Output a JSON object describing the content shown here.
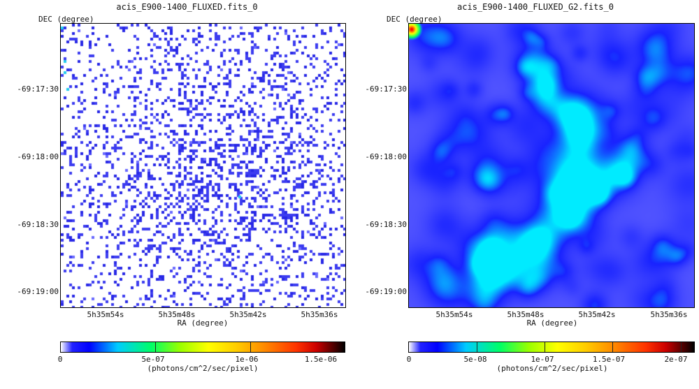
{
  "panels": [
    {
      "title": "acis_E900-1400_FLUXED.fits_0",
      "ylabel": "DEC (degree)",
      "xlabel": "RA (degree)",
      "yticks": [
        "-69:17:30",
        "-69:18:00",
        "-69:18:30",
        "-69:19:00"
      ],
      "xticks": [
        "5h35m54s",
        "5h35m48s",
        "5h35m42s",
        "5h35m36s"
      ],
      "colorbar_ticks": [
        "0",
        "5e-07",
        "1e-06",
        "1.5e-06"
      ],
      "colorbar_label": "(photons/cm^2/sec/pixel)"
    },
    {
      "title": "acis_E900-1400_FLUXED_G2.fits_0",
      "ylabel": "DEC (degree)",
      "xlabel": "RA (degree)",
      "yticks": [
        "-69:17:30",
        "-69:18:00",
        "-69:18:30",
        "-69:19:00"
      ],
      "xticks": [
        "5h35m54s",
        "5h35m48s",
        "5h35m42s",
        "5h35m36s"
      ],
      "colorbar_ticks": [
        "0",
        "5e-08",
        "1e-07",
        "1.5e-07",
        "2e-07"
      ],
      "colorbar_label": "(photons/cm^2/sec/pixel)"
    }
  ],
  "chart_data": [
    {
      "type": "heatmap",
      "title": "acis_E900-1400_FLUXED.fits_0",
      "xlabel": "RA (degree)",
      "ylabel": "DEC (degree)",
      "x_ticks": [
        "5h35m54s",
        "5h35m48s",
        "5h35m42s",
        "5h35m36s"
      ],
      "y_ticks": [
        "-69:17:30",
        "-69:18:00",
        "-69:18:30",
        "-69:19:00"
      ],
      "color_range": [
        0,
        1.5e-06
      ],
      "colorbar_ticks": [
        0,
        5e-07,
        1e-06,
        1.5e-06
      ],
      "colorbar_label": "(photons/cm^2/sec/pixel)",
      "colormap": [
        "#ffffff",
        "#3333ff",
        "#00ffff",
        "#00ff00",
        "#ffff00",
        "#ff8800",
        "#ff0000",
        "#000000"
      ],
      "description_values": "sparse single-pixel counts mostly at the low end (blue), few cyan pixels"
    },
    {
      "type": "heatmap",
      "title": "acis_E900-1400_FLUXED_G2.fits_0",
      "xlabel": "RA (degree)",
      "ylabel": "DEC (degree)",
      "x_ticks": [
        "5h35m54s",
        "5h35m48s",
        "5h35m42s",
        "5h35m36s"
      ],
      "y_ticks": [
        "-69:17:30",
        "-69:18:00",
        "-69:18:30",
        "-69:19:00"
      ],
      "color_range": [
        0,
        2.1e-07
      ],
      "colorbar_ticks": [
        0,
        5e-08,
        1e-07,
        1.5e-07,
        2e-07
      ],
      "colorbar_label": "(photons/cm^2/sec/pixel)",
      "colormap": [
        "#ffffff",
        "#3333ff",
        "#00ffff",
        "#00ff00",
        "#ffff00",
        "#ff8800",
        "#ff0000",
        "#000000"
      ],
      "description_values": "smoothed map, mostly blue with a diagonal cyan ridge near center; hot spot at top-left corner"
    }
  ]
}
